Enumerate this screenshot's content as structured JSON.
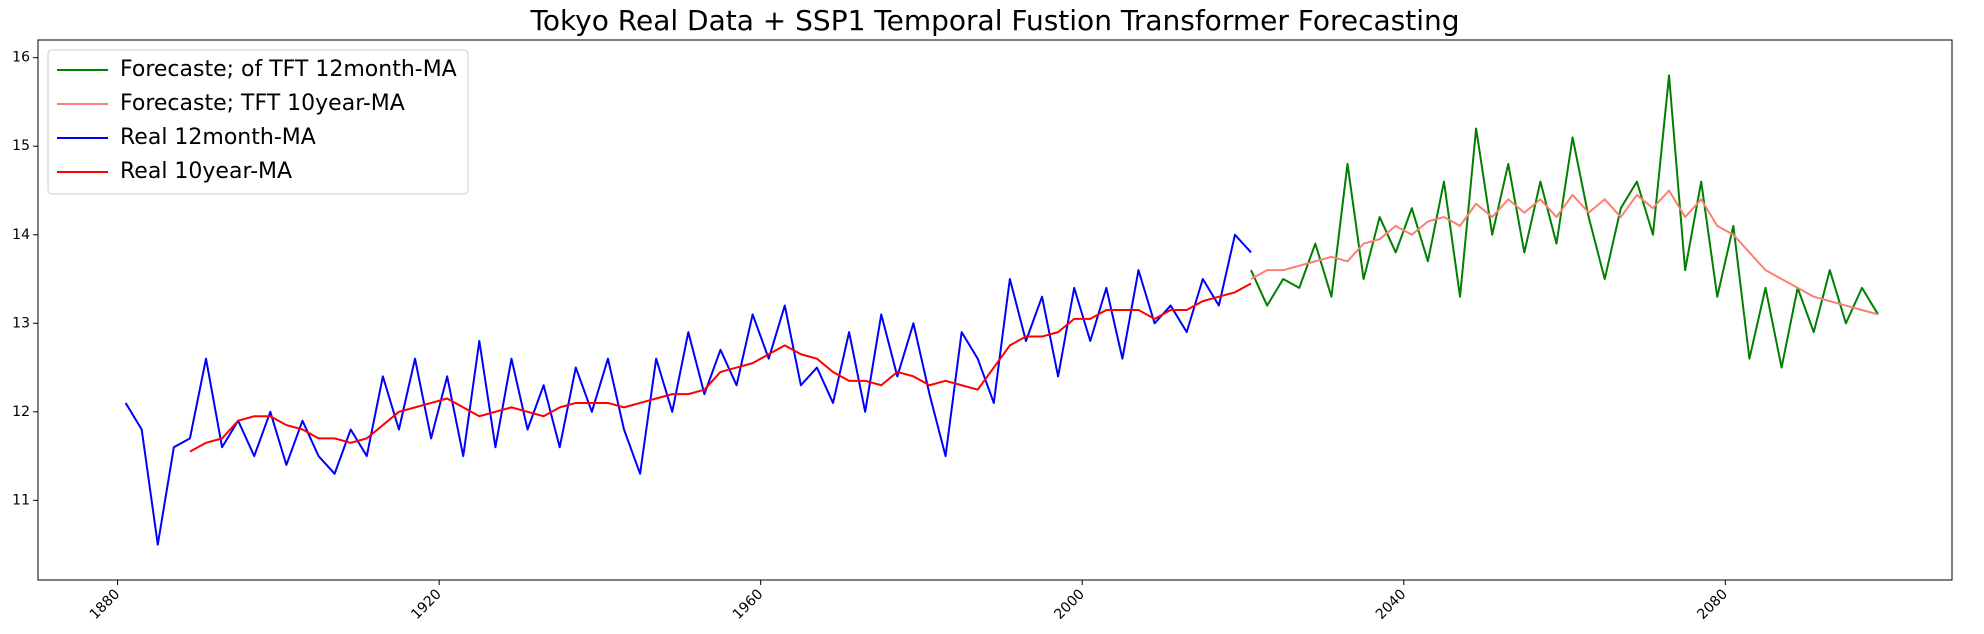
{
  "chart_data": {
    "type": "line",
    "title": "Tokyo Real Data + SSP1 Temporal Fustion Transformer Forecasting",
    "x": [
      1881,
      1883,
      1885,
      1887,
      1889,
      1891,
      1893,
      1895,
      1897,
      1899,
      1901,
      1903,
      1905,
      1907,
      1909,
      1911,
      1913,
      1915,
      1917,
      1919,
      1921,
      1923,
      1925,
      1927,
      1929,
      1931,
      1933,
      1935,
      1937,
      1939,
      1941,
      1943,
      1945,
      1947,
      1949,
      1951,
      1953,
      1955,
      1957,
      1959,
      1961,
      1963,
      1965,
      1967,
      1969,
      1971,
      1973,
      1975,
      1977,
      1979,
      1981,
      1983,
      1985,
      1987,
      1989,
      1991,
      1993,
      1995,
      1997,
      1999,
      2001,
      2003,
      2005,
      2007,
      2009,
      2011,
      2013,
      2015,
      2017,
      2019,
      2021,
      2023,
      2025,
      2027,
      2029,
      2031,
      2033,
      2035,
      2037,
      2039,
      2041,
      2043,
      2045,
      2047,
      2049,
      2051,
      2053,
      2055,
      2057,
      2059,
      2061,
      2063,
      2065,
      2067,
      2069,
      2071,
      2073,
      2075,
      2077,
      2079,
      2081,
      2083,
      2085,
      2087,
      2089,
      2091,
      2093,
      2095,
      2097,
      2099
    ],
    "series": [
      {
        "name": "Forecaste; of TFT 12month-MA",
        "color": "#008000",
        "values": [
          null,
          null,
          null,
          null,
          null,
          null,
          null,
          null,
          null,
          null,
          null,
          null,
          null,
          null,
          null,
          null,
          null,
          null,
          null,
          null,
          null,
          null,
          null,
          null,
          null,
          null,
          null,
          null,
          null,
          null,
          null,
          null,
          null,
          null,
          null,
          null,
          null,
          null,
          null,
          null,
          null,
          null,
          null,
          null,
          null,
          null,
          null,
          null,
          null,
          null,
          null,
          null,
          null,
          null,
          null,
          null,
          null,
          null,
          null,
          null,
          null,
          null,
          null,
          null,
          null,
          null,
          null,
          null,
          null,
          null,
          13.6,
          13.2,
          13.5,
          13.4,
          13.9,
          13.3,
          14.8,
          13.5,
          14.2,
          13.8,
          14.3,
          13.7,
          14.6,
          13.3,
          15.2,
          14.0,
          14.8,
          13.8,
          14.6,
          13.9,
          15.1,
          14.2,
          13.5,
          14.3,
          14.6,
          14.0,
          15.8,
          13.6,
          14.6,
          13.3,
          14.1,
          12.6,
          13.4,
          12.5,
          13.4,
          12.9,
          13.6,
          13.0,
          13.4,
          13.1
        ]
      },
      {
        "name": "Forecaste; TFT 10year-MA",
        "color": "#fa8072",
        "values": [
          null,
          null,
          null,
          null,
          null,
          null,
          null,
          null,
          null,
          null,
          null,
          null,
          null,
          null,
          null,
          null,
          null,
          null,
          null,
          null,
          null,
          null,
          null,
          null,
          null,
          null,
          null,
          null,
          null,
          null,
          null,
          null,
          null,
          null,
          null,
          null,
          null,
          null,
          null,
          null,
          null,
          null,
          null,
          null,
          null,
          null,
          null,
          null,
          null,
          null,
          null,
          null,
          null,
          null,
          null,
          null,
          null,
          null,
          null,
          null,
          null,
          null,
          null,
          null,
          null,
          null,
          null,
          null,
          null,
          null,
          13.5,
          13.6,
          13.6,
          13.65,
          13.7,
          13.75,
          13.7,
          13.9,
          13.95,
          14.1,
          14.0,
          14.15,
          14.2,
          14.1,
          14.35,
          14.2,
          14.4,
          14.25,
          14.4,
          14.2,
          14.45,
          14.25,
          14.4,
          14.2,
          14.45,
          14.3,
          14.5,
          14.2,
          14.4,
          14.1,
          14.0,
          13.8,
          13.6,
          13.5,
          13.4,
          13.3,
          13.25,
          13.2,
          13.15,
          13.1
        ]
      },
      {
        "name": "Real 12month-MA",
        "color": "#0000ff",
        "values": [
          12.1,
          11.8,
          10.5,
          11.6,
          11.7,
          12.6,
          11.6,
          11.9,
          11.5,
          12.0,
          11.4,
          11.9,
          11.5,
          11.3,
          11.8,
          11.5,
          12.4,
          11.8,
          12.6,
          11.7,
          12.4,
          11.5,
          12.8,
          11.6,
          12.6,
          11.8,
          12.3,
          11.6,
          12.5,
          12.0,
          12.6,
          11.8,
          11.3,
          12.6,
          12.0,
          12.9,
          12.2,
          12.7,
          12.3,
          13.1,
          12.6,
          13.2,
          12.3,
          12.5,
          12.1,
          12.9,
          12.0,
          13.1,
          12.4,
          13.0,
          12.2,
          11.5,
          12.9,
          12.6,
          12.1,
          13.5,
          12.8,
          13.3,
          12.4,
          13.4,
          12.8,
          13.4,
          12.6,
          13.6,
          13.0,
          13.2,
          12.9,
          13.5,
          13.2,
          14.0,
          13.8,
          null,
          null,
          null,
          null,
          null,
          null,
          null,
          null,
          null,
          null,
          null,
          null,
          null,
          null,
          null,
          null,
          null,
          null,
          null,
          null,
          null,
          null,
          null,
          null,
          null,
          null,
          null,
          null,
          null,
          null,
          null,
          null,
          null,
          null,
          null,
          null,
          null,
          null,
          null
        ]
      },
      {
        "name": "Real 10year-MA",
        "color": "#ff0000",
        "values": [
          null,
          null,
          null,
          null,
          11.55,
          11.65,
          11.7,
          11.9,
          11.95,
          11.95,
          11.85,
          11.8,
          11.7,
          11.7,
          11.65,
          11.7,
          11.85,
          12.0,
          12.05,
          12.1,
          12.15,
          12.05,
          11.95,
          12.0,
          12.05,
          12.0,
          11.95,
          12.05,
          12.1,
          12.1,
          12.1,
          12.05,
          12.1,
          12.15,
          12.2,
          12.2,
          12.25,
          12.45,
          12.5,
          12.55,
          12.65,
          12.75,
          12.65,
          12.6,
          12.45,
          12.35,
          12.35,
          12.3,
          12.45,
          12.4,
          12.3,
          12.35,
          12.3,
          12.25,
          12.5,
          12.75,
          12.85,
          12.85,
          12.9,
          13.05,
          13.05,
          13.15,
          13.15,
          13.15,
          13.05,
          13.15,
          13.15,
          13.25,
          13.3,
          13.35,
          13.45,
          null,
          null,
          null,
          null,
          null,
          null,
          null,
          null,
          null,
          null,
          null,
          null,
          null,
          null,
          null,
          null,
          null,
          null,
          null,
          null,
          null,
          null,
          null,
          null,
          null,
          null,
          null,
          null,
          null,
          null,
          null,
          null,
          null,
          null,
          null,
          null,
          null,
          null,
          null
        ]
      }
    ],
    "xlim": [
      1870.1,
      2108.2
    ],
    "xticks": [
      1880,
      1920,
      1960,
      2000,
      2040,
      2080
    ],
    "ylim": [
      10.1,
      16.2
    ],
    "yticks": [
      11,
      12,
      13,
      14,
      15,
      16
    ],
    "grid": false,
    "legend": "upper left"
  }
}
